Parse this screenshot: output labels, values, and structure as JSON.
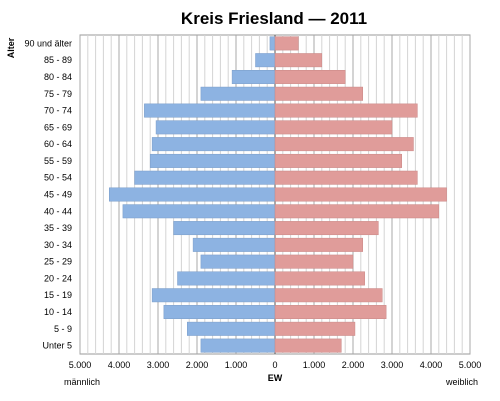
{
  "chart_data": {
    "type": "bar",
    "orientation": "horizontal-population-pyramid",
    "title": "Kreis Friesland — 2011",
    "ylabel": "Alter",
    "xlabel": "EW",
    "left_label": "männlich",
    "right_label": "weiblich",
    "categories": [
      "90 und älter",
      "85 - 89",
      "80 - 84",
      "75 - 79",
      "70 - 74",
      "65 - 69",
      "60 - 64",
      "55 - 59",
      "50 - 54",
      "45 - 49",
      "40 - 44",
      "35 - 39",
      "30 - 34",
      "25 - 29",
      "20 - 24",
      "15 - 19",
      "10 - 14",
      "5 - 9",
      "Unter 5"
    ],
    "series": [
      {
        "name": "männlich",
        "color": "#8db3e2",
        "values": [
          130,
          500,
          1100,
          1900,
          3350,
          3050,
          3150,
          3200,
          3600,
          4250,
          3900,
          2600,
          2100,
          1900,
          2500,
          3150,
          2850,
          2250,
          1900
        ]
      },
      {
        "name": "weiblich",
        "color": "#e09c9a",
        "values": [
          600,
          1200,
          1800,
          2250,
          3650,
          3000,
          3550,
          3250,
          3650,
          4400,
          4200,
          2650,
          2250,
          2000,
          2300,
          2750,
          2850,
          2050,
          1700
        ]
      }
    ],
    "xlim": [
      -5000,
      5000
    ],
    "xticks": [
      -5000,
      -4000,
      -3000,
      -2000,
      -1000,
      0,
      1000,
      2000,
      3000,
      4000,
      5000
    ],
    "xtick_labels": [
      "5.000",
      "4.000",
      "3.000",
      "2.000",
      "1.000",
      "0",
      "1.000",
      "2.000",
      "3.000",
      "4.000",
      "5.000"
    ],
    "minor_grid_step": 200,
    "grid": true
  }
}
